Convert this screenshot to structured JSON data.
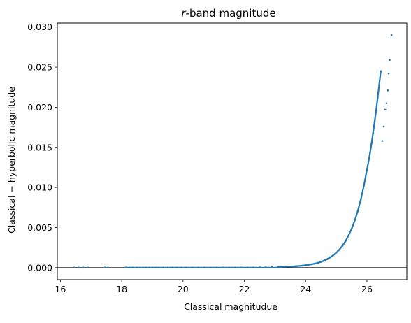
{
  "chart_data": {
    "type": "scatter",
    "title_italic": "r",
    "title_rest": "-band magnitude",
    "xlabel": "Classical magnitudue",
    "ylabel": "Classical − hyperbolic magnitude",
    "xlim": [
      15.9,
      27.3
    ],
    "ylim": [
      -0.0015,
      0.0305
    ],
    "xticks": [
      16,
      18,
      20,
      22,
      24,
      26
    ],
    "xtick_labels": [
      "16",
      "18",
      "20",
      "22",
      "24",
      "26"
    ],
    "yticks": [
      0.0,
      0.005,
      0.01,
      0.015,
      0.02,
      0.025,
      0.03
    ],
    "ytick_labels": [
      "0.000",
      "0.005",
      "0.010",
      "0.015",
      "0.020",
      "0.025",
      "0.030"
    ],
    "hline_y": 0.0,
    "grid": false,
    "marker_color": "#1f77b4",
    "points_x": [
      16.45,
      16.6,
      16.75,
      16.9,
      17.45,
      17.55,
      18.15,
      18.25,
      18.35,
      18.5,
      18.6,
      18.7,
      18.8,
      18.9,
      19.0,
      19.1,
      19.2,
      19.35,
      19.5,
      19.65,
      19.8,
      19.95,
      20.1,
      20.3,
      20.5,
      20.7,
      20.9,
      21.1,
      21.3,
      21.5,
      21.7,
      21.9,
      22.1,
      22.3,
      22.5,
      22.7,
      22.9,
      23.1,
      23.3,
      23.5,
      23.7,
      23.9,
      24.0,
      24.1,
      24.2,
      24.3,
      24.4,
      24.5,
      24.6,
      24.7,
      24.8,
      24.9,
      25.0,
      25.1,
      25.2,
      25.3,
      25.4,
      25.5,
      25.6,
      25.7,
      25.8,
      25.9,
      26.0,
      26.05,
      26.1,
      26.15,
      26.2,
      26.25,
      26.3,
      26.35,
      26.4,
      26.45,
      26.5,
      26.55,
      26.6,
      26.64,
      26.68,
      26.71,
      26.74,
      26.8
    ],
    "points_y": [
      0.0,
      0.0,
      0.0,
      0.0,
      0.0,
      0.0,
      0.0,
      0.0,
      0.0,
      0.0,
      0.0,
      0.0,
      0.0,
      0.0,
      0.0,
      0.0,
      0.0,
      0.0,
      0.0,
      0.0,
      0.0,
      0.0,
      0.0,
      0.0,
      0.0,
      0.0,
      0.0,
      0.0,
      0.0,
      0.0,
      0.0,
      0.0,
      0.0,
      1e-05,
      2e-05,
      3e-05,
      5e-05,
      7e-05,
      0.0001,
      0.00013,
      0.00018,
      0.00025,
      0.0003,
      0.00035,
      0.00042,
      0.0005,
      0.0006,
      0.00072,
      0.00087,
      0.00105,
      0.00127,
      0.00154,
      0.00186,
      0.00225,
      0.00272,
      0.0033,
      0.004,
      0.00485,
      0.00585,
      0.00705,
      0.0085,
      0.0102,
      0.0122,
      0.0132,
      0.0143,
      0.0155,
      0.0168,
      0.0182,
      0.0196,
      0.0212,
      0.0228,
      0.0245,
      0.0158,
      0.0176,
      0.0197,
      0.0205,
      0.0221,
      0.0242,
      0.0259,
      0.029
    ]
  }
}
